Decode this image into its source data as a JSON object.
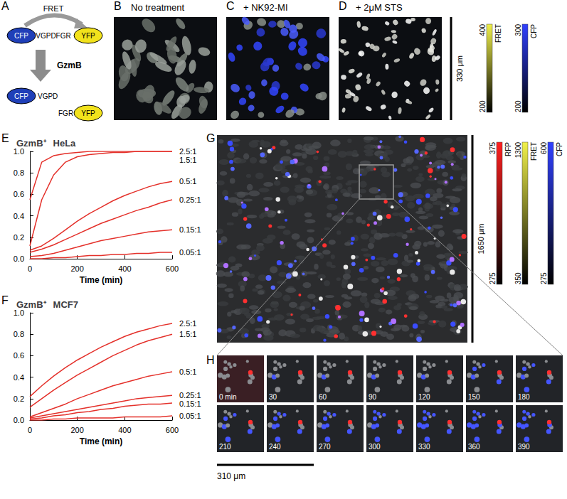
{
  "chart_data": [
    {
      "type": "line",
      "title": "HeLa",
      "ylabel": "GzmB⁺",
      "xlabel": "Time (min)",
      "x": [
        0,
        50,
        100,
        150,
        200,
        250,
        300,
        350,
        400,
        450,
        500,
        550,
        600
      ],
      "series": [
        {
          "name": "2.5:1",
          "color": "#e4312b",
          "values": [
            0.55,
            0.9,
            0.96,
            0.98,
            0.99,
            1.0,
            1.0,
            1.0,
            1.0,
            1.0,
            1.0,
            1.0,
            1.0
          ]
        },
        {
          "name": "1.5:1",
          "color": "#e4312b",
          "values": [
            0.12,
            0.55,
            0.78,
            0.9,
            0.95,
            0.97,
            0.98,
            0.99,
            0.99,
            1.0,
            1.0,
            1.0,
            1.0
          ]
        },
        {
          "name": "0.5:1",
          "color": "#e4312b",
          "values": [
            0.08,
            0.12,
            0.19,
            0.27,
            0.35,
            0.42,
            0.48,
            0.54,
            0.59,
            0.63,
            0.67,
            0.7,
            0.72
          ]
        },
        {
          "name": "0.25:1",
          "color": "#e4312b",
          "values": [
            0.06,
            0.09,
            0.13,
            0.18,
            0.23,
            0.28,
            0.33,
            0.37,
            0.41,
            0.45,
            0.48,
            0.52,
            0.55
          ]
        },
        {
          "name": "0.15:1",
          "color": "#e4312b",
          "values": [
            0.02,
            0.03,
            0.05,
            0.08,
            0.11,
            0.14,
            0.17,
            0.19,
            0.21,
            0.23,
            0.25,
            0.26,
            0.27
          ]
        },
        {
          "name": "0.05:1",
          "color": "#e4312b",
          "values": [
            0.0,
            0.0,
            0.01,
            0.01,
            0.02,
            0.03,
            0.03,
            0.04,
            0.04,
            0.05,
            0.05,
            0.06,
            0.06
          ]
        }
      ],
      "xlim": [
        0,
        600
      ],
      "xticks": [
        0,
        200,
        400,
        600
      ],
      "ylim": [
        0,
        1
      ],
      "yticks": [
        {
          "value": 0,
          "label": "0.0"
        },
        {
          "value": 0.2,
          "label": "0.2"
        },
        {
          "value": 0.4,
          "label": "0.4"
        },
        {
          "value": 0.6,
          "label": "0.6"
        },
        {
          "value": 0.8,
          "label": "0.8"
        },
        {
          "value": 1,
          "label": "1.0"
        }
      ],
      "grid": false
    },
    {
      "type": "line",
      "title": "MCF7",
      "ylabel": "GzmB⁺",
      "xlabel": "Time (min)",
      "x": [
        0,
        50,
        100,
        150,
        200,
        250,
        300,
        350,
        400,
        450,
        500,
        550,
        600
      ],
      "series": [
        {
          "name": "2.5:1",
          "color": "#e4312b",
          "values": [
            0.22,
            0.32,
            0.41,
            0.49,
            0.56,
            0.62,
            0.68,
            0.73,
            0.78,
            0.82,
            0.85,
            0.88,
            0.9
          ]
        },
        {
          "name": "1.5:1",
          "color": "#e4312b",
          "values": [
            0.12,
            0.2,
            0.28,
            0.35,
            0.42,
            0.48,
            0.54,
            0.6,
            0.65,
            0.7,
            0.74,
            0.77,
            0.8
          ]
        },
        {
          "name": "0.5:1",
          "color": "#e4312b",
          "values": [
            0.03,
            0.07,
            0.11,
            0.15,
            0.2,
            0.24,
            0.28,
            0.32,
            0.35,
            0.38,
            0.41,
            0.43,
            0.45
          ]
        },
        {
          "name": "0.25:1",
          "color": "#e4312b",
          "values": [
            0.02,
            0.04,
            0.06,
            0.08,
            0.1,
            0.12,
            0.14,
            0.16,
            0.18,
            0.2,
            0.21,
            0.22,
            0.23
          ]
        },
        {
          "name": "0.15:1",
          "color": "#e4312b",
          "values": [
            0.01,
            0.02,
            0.04,
            0.05,
            0.07,
            0.08,
            0.1,
            0.11,
            0.13,
            0.14,
            0.15,
            0.15,
            0.16
          ]
        },
        {
          "name": "0.05:1",
          "color": "#e4312b",
          "values": [
            0.0,
            0.0,
            0.01,
            0.01,
            0.02,
            0.02,
            0.02,
            0.02,
            0.03,
            0.03,
            0.03,
            0.03,
            0.04
          ]
        }
      ],
      "xlim": [
        0,
        600
      ],
      "xticks": [
        0,
        200,
        400,
        600
      ],
      "ylim": [
        0,
        1
      ],
      "yticks": [
        {
          "value": 0,
          "label": "0.0"
        },
        {
          "value": 0.2,
          "label": "0.2"
        },
        {
          "value": 0.4,
          "label": "0.4"
        },
        {
          "value": 0.6,
          "label": "0.6"
        },
        {
          "value": 0.8,
          "label": "0.8"
        },
        {
          "value": 1,
          "label": "1.0"
        }
      ],
      "grid": false
    }
  ],
  "figure": {
    "panel_labels": [
      "A",
      "B",
      "C",
      "D",
      "E",
      "F",
      "G",
      "H"
    ],
    "diagram": {
      "transfer": "FRET",
      "donor": "CFP",
      "linker": "VGPDFGR",
      "acceptor": "YFP",
      "enzyme": "GzmB",
      "cleaved_left": "VGPD",
      "cleaved_right": "FGR"
    },
    "images": [
      {
        "label": "No treatment"
      },
      {
        "label": "+ NK92-MI"
      },
      {
        "label": "+ 2μM STS"
      }
    ],
    "top_scale_bar": "330 μm",
    "top_colorbars": [
      {
        "name": "FRET",
        "color": "#f0f04a",
        "max": 400,
        "min": 200
      },
      {
        "name": "CFP",
        "color": "#3040ff",
        "max": 300,
        "min": 200
      }
    ],
    "overview_scale_bar": "1650 μm",
    "overview_colorbars": [
      {
        "name": "RFP",
        "color": "#ff2020",
        "max": 375,
        "min": 275
      },
      {
        "name": "FRET",
        "color": "#f0f04a",
        "max": 1300,
        "min": 350
      },
      {
        "name": "CFP",
        "color": "#3040ff",
        "max": 600,
        "min": 275
      }
    ],
    "timelapse": {
      "times": [
        "0 min",
        "30",
        "60",
        "90",
        "120",
        "150",
        "180",
        "210",
        "240",
        "270",
        "300",
        "330",
        "360",
        "390"
      ],
      "scale_bar": "310 μm"
    }
  }
}
